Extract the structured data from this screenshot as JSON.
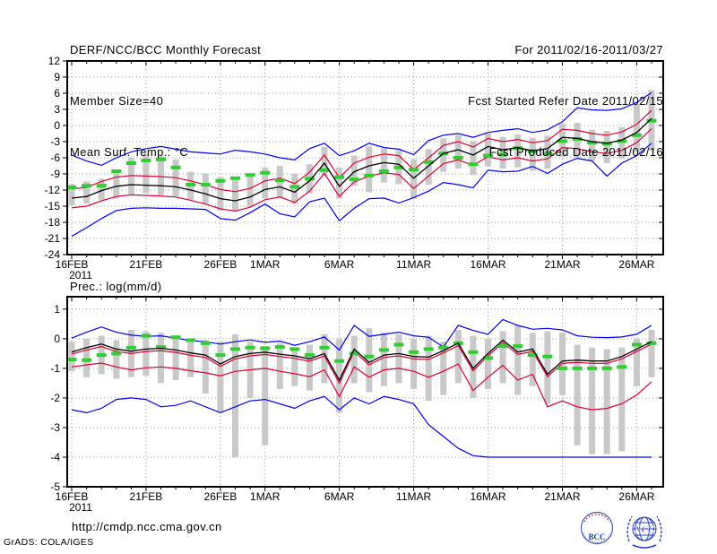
{
  "header": {
    "title": "DERF/NCC/BCC Monthly Forecast",
    "member_size": "Member Size=40",
    "temp_title": "Mean Surf. Temp.: °C",
    "for_range": "For 2011/02/16-2011/03/27",
    "refer_date": "Fcst Started Refer Date 2011/02/15",
    "produced_date": "Fcst Produced Date 2011/02/16"
  },
  "footer": {
    "url": "http://cmdp.ncc.cma.gov.cn",
    "credit": "GrADS: COLA/IGES",
    "bcc_label": "BCC",
    "ncc_label": "NCC"
  },
  "colors": {
    "blue": "#0000ee",
    "red": "#dd0033",
    "green": "#33cc33",
    "bar": "#c9c9c9",
    "grid": "#999999",
    "black": "#000000"
  },
  "chart_data": [
    {
      "id": "temperature",
      "type": "line",
      "title": "Mean Surf. Temp.: °C",
      "ylabel": "",
      "ylim": [
        -24,
        12
      ],
      "yticks": [
        12,
        9,
        6,
        3,
        0,
        -3,
        -6,
        -9,
        -12,
        -15,
        -18,
        -21,
        -24
      ],
      "n_days": 40,
      "xticks": [
        {
          "label": "16FEB",
          "day": 0,
          "sub": "2011"
        },
        {
          "label": "21FEB",
          "day": 5
        },
        {
          "label": "26FEB",
          "day": 10
        },
        {
          "label": "1MAR",
          "day": 13
        },
        {
          "label": "6MAR",
          "day": 18
        },
        {
          "label": "11MAR",
          "day": 23
        },
        {
          "label": "16MAR",
          "day": 28
        },
        {
          "label": "21MAR",
          "day": 33
        },
        {
          "label": "26MAR",
          "day": 38
        }
      ],
      "series": [
        {
          "name": "blue-upper-envelope",
          "color": "#0000ee",
          "values": [
            -5.5,
            -6.6,
            -7.4,
            -6.0,
            -4.9,
            -4.3,
            -3.9,
            -4.4,
            -4.9,
            -5.1,
            -5.3,
            -4.6,
            -4.9,
            -5.3,
            -6.0,
            -6.4,
            -4.3,
            -3.3,
            -5.6,
            -4.7,
            -3.3,
            -4.1,
            -4.4,
            -5.4,
            -2.8,
            -1.8,
            -1.5,
            -2.2,
            -1.3,
            -0.9,
            -0.6,
            -1.3,
            -0.8,
            0.7,
            3.3,
            2.9,
            2.8,
            3.1,
            4.3,
            6.1
          ]
        },
        {
          "name": "red-upper",
          "color": "#dd0033",
          "values": [
            -11.8,
            -11.5,
            -10.4,
            -9.6,
            -9.3,
            -9.4,
            -9.5,
            -9.7,
            -10.3,
            -11.0,
            -11.9,
            -12.3,
            -11.7,
            -10.3,
            -9.8,
            -10.8,
            -8.7,
            -5.5,
            -9.7,
            -7.0,
            -5.9,
            -5.3,
            -5.6,
            -8.2,
            -6.0,
            -3.7,
            -3.0,
            -4.0,
            -2.4,
            -3.0,
            -2.6,
            -3.2,
            -2.8,
            -0.7,
            -0.9,
            -1.5,
            -1.8,
            -1.2,
            0.2,
            2.8
          ]
        },
        {
          "name": "red-lower",
          "color": "#dd0033",
          "values": [
            -15.3,
            -15.0,
            -14.0,
            -13.2,
            -12.9,
            -13.0,
            -13.1,
            -13.3,
            -13.9,
            -14.6,
            -15.5,
            -15.9,
            -15.2,
            -13.8,
            -13.3,
            -14.3,
            -12.2,
            -8.9,
            -13.2,
            -10.5,
            -9.4,
            -8.8,
            -9.1,
            -11.7,
            -9.4,
            -7.1,
            -6.4,
            -7.4,
            -5.8,
            -6.4,
            -6.0,
            -6.6,
            -6.2,
            -4.1,
            -4.3,
            -4.9,
            -5.2,
            -4.6,
            -3.2,
            -0.6
          ]
        },
        {
          "name": "blue-lower-envelope",
          "color": "#0000ee",
          "values": [
            -20.6,
            -19.0,
            -17.3,
            -15.8,
            -15.4,
            -15.3,
            -15.4,
            -15.4,
            -15.5,
            -15.6,
            -17.3,
            -17.6,
            -16.2,
            -14.6,
            -16.4,
            -17.0,
            -14.2,
            -13.5,
            -17.7,
            -15.4,
            -13.6,
            -13.5,
            -14.4,
            -13.4,
            -12.2,
            -10.6,
            -11.0,
            -11.6,
            -8.3,
            -8.6,
            -8.5,
            -7.6,
            -8.9,
            -7.2,
            -6.1,
            -6.6,
            -9.4,
            -7.0,
            -5.6,
            -3.3
          ]
        }
      ],
      "mean_black": [
        -13.5,
        -13.2,
        -12.1,
        -11.3,
        -11.0,
        -11.1,
        -11.2,
        -11.4,
        -12.0,
        -12.7,
        -13.6,
        -14.0,
        -13.3,
        -11.9,
        -11.4,
        -12.4,
        -10.3,
        -7.0,
        -11.3,
        -8.6,
        -7.5,
        -6.9,
        -7.2,
        -9.8,
        -7.5,
        -5.2,
        -4.5,
        -5.5,
        -3.9,
        -4.5,
        -4.1,
        -4.7,
        -4.3,
        -2.2,
        -2.4,
        -3.0,
        -3.3,
        -2.7,
        -1.3,
        1.3
      ],
      "green_dashes": [
        -11.5,
        -11.2,
        -11.2,
        -8.5,
        -7.0,
        -6.5,
        -6.3,
        -7.8,
        -11.0,
        -11.0,
        -10.3,
        -9.8,
        -9.2,
        -8.8,
        -10.2,
        -11.4,
        -9.9,
        -8.3,
        -9.6,
        -10.0,
        -9.3,
        -8.5,
        -7.8,
        -8.2,
        -6.8,
        -5.2,
        -6.0,
        -7.2,
        -5.6,
        -5.4,
        -4.2,
        -4.8,
        -5.2,
        -2.9,
        -2.5,
        -3.2,
        -3.4,
        -2.9,
        -1.8,
        0.9
      ],
      "bars": {
        "high": [
          -10.9,
          -10.4,
          -9.9,
          -8.2,
          -5.9,
          -5.3,
          -5.7,
          -6.3,
          -8.6,
          -8.9,
          -9.6,
          -10.2,
          -9.5,
          -7.8,
          -7.5,
          -9.0,
          -7.2,
          -4.0,
          -7.8,
          -5.6,
          -3.9,
          -4.3,
          -4.6,
          -6.3,
          -4.4,
          -2.4,
          -1.8,
          -2.9,
          -1.5,
          -2.1,
          -1.7,
          -2.3,
          -1.9,
          0.3,
          0.5,
          -0.8,
          -1.0,
          -0.3,
          4.0,
          6.6
        ],
        "low": [
          -14.8,
          -14.5,
          -13.8,
          -13.6,
          -12.8,
          -12.6,
          -12.9,
          -13.2,
          -13.8,
          -14.5,
          -15.8,
          -16.0,
          -15.2,
          -13.6,
          -13.4,
          -14.6,
          -12.6,
          -9.4,
          -13.6,
          -11.2,
          -12.4,
          -10.6,
          -10.9,
          -13.6,
          -11.0,
          -8.6,
          -8.0,
          -9.2,
          -7.6,
          -8.0,
          -7.8,
          -8.4,
          -8.0,
          -5.8,
          -6.0,
          -6.6,
          -7.0,
          -6.2,
          -5.0,
          -4.6
        ]
      }
    },
    {
      "id": "precipitation",
      "type": "line",
      "title": "Prec.: log(mm/d)",
      "ylabel": "",
      "ylim": [
        -5,
        1
      ],
      "yticks": [
        1,
        0,
        -1,
        -2,
        -3,
        -4,
        -5
      ],
      "n_days": 40,
      "xticks": [
        {
          "label": "16FEB",
          "day": 0,
          "sub": "2011"
        },
        {
          "label": "21FEB",
          "day": 5
        },
        {
          "label": "26FEB",
          "day": 10
        },
        {
          "label": "1MAR",
          "day": 13
        },
        {
          "label": "6MAR",
          "day": 18
        },
        {
          "label": "11MAR",
          "day": 23
        },
        {
          "label": "16MAR",
          "day": 28
        },
        {
          "label": "21MAR",
          "day": 33
        },
        {
          "label": "26MAR",
          "day": 38
        }
      ],
      "series": [
        {
          "name": "blue-upper-envelope",
          "color": "#0000ee",
          "values": [
            0.02,
            0.22,
            0.4,
            0.22,
            0.12,
            0.08,
            0.1,
            0.02,
            -0.06,
            -0.1,
            -0.18,
            -0.1,
            -0.04,
            -0.12,
            -0.08,
            -0.22,
            -0.1,
            0.06,
            -0.38,
            0.45,
            0.08,
            0.15,
            0.22,
            0.1,
            0.05,
            -0.28,
            0.45,
            0.28,
            0.15,
            0.65,
            0.45,
            0.32,
            0.35,
            0.3,
            0.1,
            0.05,
            0.04,
            0.06,
            0.15,
            0.45
          ]
        },
        {
          "name": "red-upper",
          "color": "#dd0033",
          "values": [
            -0.52,
            -0.38,
            -0.26,
            -0.43,
            -0.5,
            -0.43,
            -0.4,
            -0.46,
            -0.56,
            -0.63,
            -0.93,
            -0.68,
            -0.58,
            -0.53,
            -0.6,
            -0.66,
            -0.76,
            -0.58,
            -1.5,
            -0.43,
            -0.88,
            -0.63,
            -0.58,
            -0.68,
            -0.7,
            -0.48,
            -0.23,
            -1.08,
            -0.58,
            -0.13,
            -0.53,
            -0.43,
            -1.28,
            -0.83,
            -0.8,
            -0.83,
            -0.83,
            -0.68,
            -0.43,
            -0.18
          ]
        },
        {
          "name": "red-lower",
          "color": "#dd0033",
          "values": [
            -0.95,
            -0.88,
            -0.82,
            -0.95,
            -1.05,
            -0.98,
            -0.95,
            -1.0,
            -1.08,
            -1.15,
            -1.25,
            -1.1,
            -1.05,
            -1.0,
            -1.1,
            -1.18,
            -1.28,
            -1.05,
            -1.95,
            -0.95,
            -1.3,
            -1.05,
            -1.0,
            -1.1,
            -1.3,
            -1.1,
            -0.85,
            -1.75,
            -1.3,
            -0.9,
            -1.4,
            -1.2,
            -2.3,
            -2.1,
            -2.3,
            -2.4,
            -2.35,
            -2.2,
            -1.9,
            -1.45
          ]
        },
        {
          "name": "blue-lower-envelope",
          "color": "#0000ee",
          "values": [
            -2.4,
            -2.5,
            -2.35,
            -2.05,
            -2.0,
            -2.05,
            -2.3,
            -2.25,
            -2.1,
            -2.3,
            -2.5,
            -2.3,
            -2.1,
            -2.05,
            -2.2,
            -2.35,
            -2.1,
            -1.95,
            -2.4,
            -2.0,
            -2.2,
            -1.95,
            -2.05,
            -2.2,
            -2.9,
            -3.3,
            -3.7,
            -3.95,
            -4.0,
            -4.0,
            -4.0,
            -4.0,
            -4.0,
            -4.0,
            -4.0,
            -4.0,
            -4.0,
            -4.0,
            -4.0,
            -4.0
          ]
        }
      ],
      "mean_black": [
        -0.45,
        -0.3,
        -0.18,
        -0.35,
        -0.42,
        -0.35,
        -0.32,
        -0.38,
        -0.48,
        -0.55,
        -0.85,
        -0.6,
        -0.5,
        -0.45,
        -0.52,
        -0.58,
        -0.68,
        -0.5,
        -1.4,
        -0.35,
        -0.8,
        -0.55,
        -0.5,
        -0.6,
        -0.62,
        -0.4,
        -0.15,
        -1.0,
        -0.5,
        -0.05,
        -0.45,
        -0.35,
        -1.2,
        -0.75,
        -0.72,
        -0.75,
        -0.75,
        -0.6,
        -0.35,
        -0.1
      ],
      "green_dashes": [
        -0.7,
        -0.72,
        -0.55,
        -0.5,
        -0.3,
        0.1,
        -0.28,
        0.05,
        -0.05,
        -0.15,
        -0.55,
        -0.35,
        -0.3,
        -0.32,
        -0.28,
        -0.35,
        -0.55,
        -0.3,
        -0.75,
        -0.5,
        -0.6,
        -0.38,
        -0.2,
        -0.45,
        -0.35,
        -0.3,
        -0.15,
        -0.45,
        -0.65,
        -0.25,
        -0.25,
        -0.55,
        -0.6,
        -1.0,
        -1.0,
        -1.0,
        -1.0,
        -0.95,
        -0.2,
        -0.15
      ],
      "bars": {
        "high": [
          -0.1,
          0.0,
          0.1,
          -0.05,
          0.3,
          0.25,
          0.2,
          0.1,
          0.0,
          -0.05,
          -0.1,
          0.15,
          -0.1,
          -0.25,
          -0.15,
          -0.3,
          -0.2,
          0.15,
          0.0,
          0.1,
          0.35,
          0.2,
          0.15,
          0.0,
          0.1,
          -0.1,
          0.3,
          0.1,
          0.0,
          0.25,
          0.45,
          0.2,
          0.25,
          0.2,
          -0.2,
          -0.3,
          -0.35,
          -0.3,
          0.0,
          0.3
        ],
        "low": [
          -1.1,
          -1.3,
          -1.2,
          -1.35,
          -1.3,
          -1.25,
          -1.5,
          -1.4,
          -1.3,
          -1.85,
          -2.5,
          -4.0,
          -2.0,
          -3.6,
          -1.7,
          -1.6,
          -1.75,
          -1.5,
          -2.5,
          -1.5,
          -1.8,
          -1.6,
          -1.5,
          -1.7,
          -2.1,
          -1.9,
          -1.5,
          -2.0,
          -1.7,
          -1.5,
          -1.9,
          -1.6,
          -2.2,
          -1.9,
          -3.6,
          -3.9,
          -3.9,
          -3.8,
          -1.6,
          -1.3
        ]
      }
    }
  ]
}
